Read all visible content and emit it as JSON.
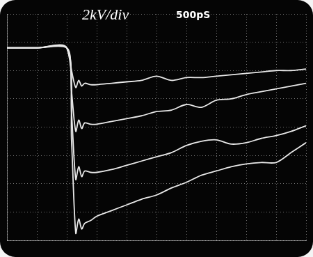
{
  "chart_data": {
    "type": "line",
    "annotations": [
      "2kV/div",
      "500pS"
    ],
    "x": [
      0,
      500,
      1000,
      1080,
      1150,
      1200,
      1250,
      1300,
      1400,
      1500,
      1750,
      2000,
      2250,
      2500,
      2750,
      3000,
      3250,
      3500,
      3750,
      4000,
      4250,
      4500,
      4750,
      5000
    ],
    "series": [
      {
        "color": "#e8e8e8",
        "values": [
          5.6,
          5.6,
          5.6,
          4.0,
          2.8,
          3.3,
          2.9,
          3.1,
          3.0,
          3.0,
          3.1,
          3.2,
          3.3,
          3.6,
          3.3,
          3.5,
          3.5,
          3.6,
          3.7,
          3.8,
          3.9,
          4.0,
          4.0,
          4.1
        ]
      },
      {
        "color": "#e8e8e8",
        "values": [
          5.6,
          5.6,
          5.6,
          2.5,
          -0.3,
          0.5,
          -0.1,
          0.3,
          0.2,
          0.2,
          0.4,
          0.6,
          0.8,
          1.1,
          1.2,
          1.6,
          1.4,
          1.9,
          2.0,
          2.3,
          2.5,
          2.7,
          2.9,
          3.1
        ]
      },
      {
        "color": "#e8e8e8",
        "values": [
          5.6,
          5.6,
          5.6,
          1.0,
          -3.7,
          -2.8,
          -3.5,
          -3.1,
          -3.2,
          -3.2,
          -3.0,
          -2.7,
          -2.4,
          -2.1,
          -1.8,
          -1.3,
          -1.0,
          -0.9,
          -1.2,
          -1.1,
          -0.8,
          -0.6,
          -0.3,
          0.1
        ]
      },
      {
        "color": "#e8e8e8",
        "values": [
          5.6,
          5.6,
          5.6,
          -1.0,
          -7.5,
          -6.5,
          -7.2,
          -6.8,
          -6.6,
          -6.3,
          -5.9,
          -5.5,
          -5.1,
          -4.8,
          -4.3,
          -3.9,
          -3.4,
          -3.1,
          -2.8,
          -2.6,
          -2.5,
          -2.5,
          -1.8,
          -1.1
        ]
      }
    ],
    "xlim": [
      0,
      5000
    ],
    "xticks": [
      0,
      500,
      1000,
      1500,
      2000,
      2500,
      3000,
      3500,
      4000,
      4500,
      5000
    ],
    "ylim": [
      -8,
      8
    ],
    "yticks": [
      -8,
      -6,
      -4,
      -2,
      0,
      2,
      4,
      6,
      8
    ],
    "grid": true,
    "tick_labels": false
  }
}
